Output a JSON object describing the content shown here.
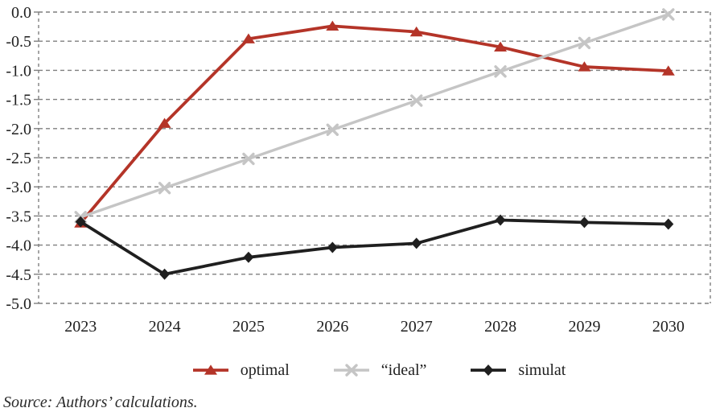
{
  "chart_data": {
    "type": "line",
    "title": "",
    "xlabel": "",
    "ylabel": "",
    "categories": [
      "2023",
      "2024",
      "2025",
      "2026",
      "2027",
      "2028",
      "2029",
      "2030"
    ],
    "series": [
      {
        "name": "optimal",
        "marker": "triangle",
        "color": "#b43428",
        "line_width": 3.8,
        "values": [
          -3.62,
          -1.91,
          -0.46,
          -0.24,
          -0.34,
          -0.6,
          -0.94,
          -1.01
        ]
      },
      {
        "name": "“ideal”",
        "marker": "x",
        "color": "#c5c5c5",
        "line_width": 3.4,
        "values": [
          -3.52,
          -3.02,
          -2.52,
          -2.02,
          -1.52,
          -1.02,
          -0.53,
          -0.04
        ]
      },
      {
        "name": "simulat",
        "marker": "diamond",
        "color": "#1f1f1f",
        "line_width": 3.8,
        "values": [
          -3.6,
          -4.5,
          -4.21,
          -4.04,
          -3.97,
          -3.57,
          -3.61,
          -3.64
        ]
      }
    ],
    "ylim": [
      -5.0,
      0.0
    ],
    "ytick_step": 0.5,
    "ytick_labels": [
      "0.0",
      "-0.5",
      "-1.0",
      "-1.5",
      "-2.0",
      "-2.5",
      "-3.0",
      "-3.5",
      "-4.0",
      "-4.5",
      "-5.0"
    ],
    "grid": "horizontal-dashed",
    "legend_position": "bottom"
  },
  "source_note": "Source: Authors’ calculations.",
  "colors": {
    "background": "#ffffff",
    "gridline": "#7f7f7f",
    "axis_text": "#1f1f1f",
    "optimal": "#b43428",
    "ideal": "#c5c5c5",
    "simulat": "#1f1f1f"
  }
}
